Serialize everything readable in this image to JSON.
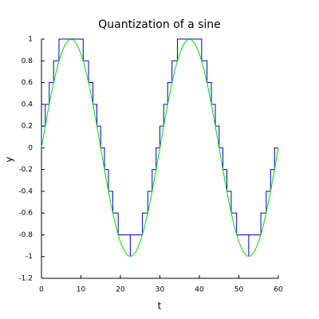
{
  "chart_data": {
    "type": "line",
    "title": "Quantization of a sine",
    "x_label": "t",
    "y_label": "y",
    "xlim": [
      0,
      60
    ],
    "xticks": [
      0,
      10,
      20,
      30,
      40,
      50,
      60
    ],
    "ylim": [
      -1.2,
      1
    ],
    "yticks": [
      1,
      0.8,
      0.6,
      0.4,
      0.2,
      0,
      -0.2,
      -0.4,
      -0.6,
      -0.8,
      -1,
      -1.2
    ],
    "series": [
      {
        "color": "#0000cc",
        "step": true,
        "x": [
          0,
          0,
          0.96,
          1.97,
          3.07,
          4.43,
          10.57,
          11.93,
          13.04,
          14.04,
          15,
          15.96,
          16.97,
          18.07,
          19.43,
          22.5,
          22.5,
          25.57,
          26.93,
          28.04,
          29.04,
          30,
          30.96,
          31.97,
          33.07,
          34.43,
          40.57,
          41.93,
          43.04,
          44.04,
          45,
          45.96,
          46.97,
          48.07,
          49.43,
          52.5,
          52.5,
          55.57,
          56.93,
          58.04,
          59.04,
          60
        ],
        "values": [
          0,
          0.2,
          0.4,
          0.6,
          0.8,
          1,
          0.8,
          0.6,
          0.4,
          0.2,
          0,
          -0.2,
          -0.4,
          -0.6,
          -0.8,
          -1,
          -0.8,
          -0.6,
          -0.4,
          -0.2,
          0,
          0.2,
          0.4,
          0.6,
          0.8,
          1,
          0.8,
          0.6,
          0.4,
          0.2,
          0,
          -0.2,
          -0.4,
          -0.6,
          -0.8,
          -1,
          -0.8,
          -0.6,
          -0.4,
          -0.2,
          0,
          0
        ]
      },
      {
        "color": "#00dd00",
        "step": false,
        "x": [
          0,
          1,
          2,
          3,
          4,
          5,
          6,
          7,
          8,
          9,
          10,
          11,
          12,
          13,
          14,
          15,
          16,
          17,
          18,
          19,
          20,
          21,
          22,
          23,
          24,
          25,
          26,
          27,
          28,
          29,
          30,
          31,
          32,
          33,
          34,
          35,
          36,
          37,
          38,
          39,
          40,
          41,
          42,
          43,
          44,
          45,
          46,
          47,
          48,
          49,
          50,
          51,
          52,
          53,
          54,
          55,
          56,
          57,
          58,
          59,
          60
        ],
        "values": [
          0,
          0.208,
          0.407,
          0.588,
          0.743,
          0.866,
          0.951,
          0.995,
          0.995,
          0.951,
          0.866,
          0.743,
          0.588,
          0.407,
          0.208,
          0,
          -0.208,
          -0.407,
          -0.588,
          -0.743,
          -0.866,
          -0.951,
          -0.995,
          -0.995,
          -0.951,
          -0.866,
          -0.743,
          -0.588,
          -0.407,
          -0.208,
          0,
          0.208,
          0.407,
          0.588,
          0.743,
          0.866,
          0.951,
          0.995,
          0.995,
          0.951,
          0.866,
          0.743,
          0.588,
          0.407,
          0.208,
          0,
          -0.208,
          -0.407,
          -0.588,
          -0.743,
          -0.866,
          -0.951,
          -0.995,
          -0.995,
          -0.951,
          -0.866,
          -0.743,
          -0.588,
          -0.407,
          -0.208,
          0
        ]
      }
    ]
  }
}
